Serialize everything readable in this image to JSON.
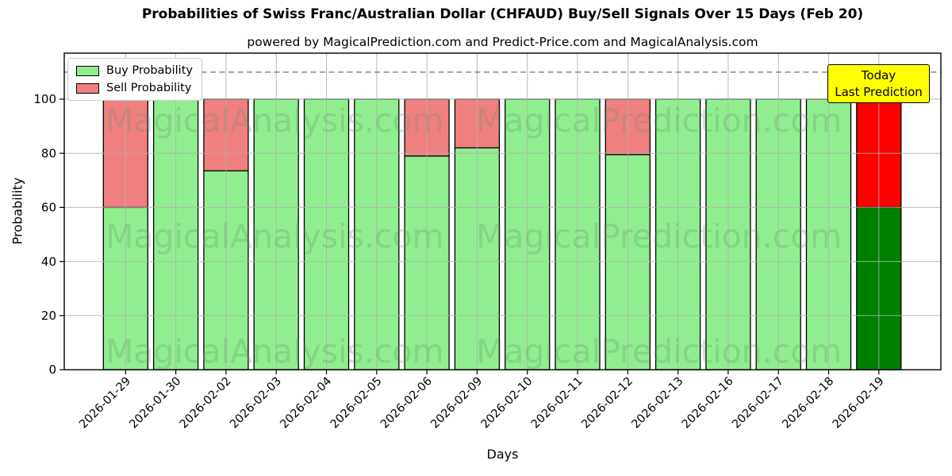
{
  "title": "Probabilities of Swiss Franc/Australian Dollar (CHFAUD) Buy/Sell Signals Over 15 Days (Feb 20)",
  "subtitle": "powered by MagicalPrediction.com and Predict-Price.com and MagicalAnalysis.com",
  "axes": {
    "x_label": "Days",
    "y_label": "Probability",
    "y_ticks": [
      0,
      20,
      40,
      60,
      80,
      100
    ]
  },
  "legend": {
    "items": [
      {
        "label": "Buy Probability",
        "color": "#90EE90"
      },
      {
        "label": "Sell Probability",
        "color": "#F08080"
      }
    ]
  },
  "annotation": {
    "line1": "Today",
    "line2": "Last Prediction",
    "bg_color": "#FFFF00"
  },
  "watermarks": {
    "left_text": "MagicalAnalysis.com",
    "right_text": "MagicalPrediction.com"
  },
  "chart_data": {
    "type": "bar",
    "stacked": true,
    "title": "Probabilities of Swiss Franc/Australian Dollar (CHFAUD) Buy/Sell Signals Over 15 Days (Feb 20)",
    "xlabel": "Days",
    "ylabel": "Probability",
    "ylim": [
      0,
      117
    ],
    "grid": true,
    "legend_position": "upper left",
    "dashed_threshold_y": 110,
    "categories": [
      "2026-01-29",
      "2026-01-30",
      "2026-02-02",
      "2026-02-03",
      "2026-02-04",
      "2026-02-05",
      "2026-02-06",
      "2026-02-09",
      "2026-02-10",
      "2026-02-11",
      "2026-02-12",
      "2026-02-13",
      "2026-02-16",
      "2026-02-17",
      "2026-02-18",
      "2026-02-19"
    ],
    "series": [
      {
        "name": "Buy Probability",
        "color": "#90EE90",
        "values": [
          60,
          100,
          73.5,
          100,
          100,
          100,
          79,
          82,
          100,
          100,
          79.5,
          100,
          100,
          100,
          100,
          60
        ]
      },
      {
        "name": "Sell Probability",
        "color": "#F08080",
        "values": [
          40,
          0,
          26.5,
          0,
          0,
          0,
          21,
          18,
          0,
          0,
          20.5,
          0,
          0,
          0,
          0,
          40
        ]
      }
    ],
    "today_index": 15,
    "today_colors": {
      "buy": "#008000",
      "sell": "#FF0000",
      "top_edge": "#FFA500"
    },
    "bar_edge_color": "#000000",
    "grid_color": "#B0B0B0",
    "dashed_line_color": "#7F7F7F",
    "watermark_color": "#6B8E6B"
  }
}
